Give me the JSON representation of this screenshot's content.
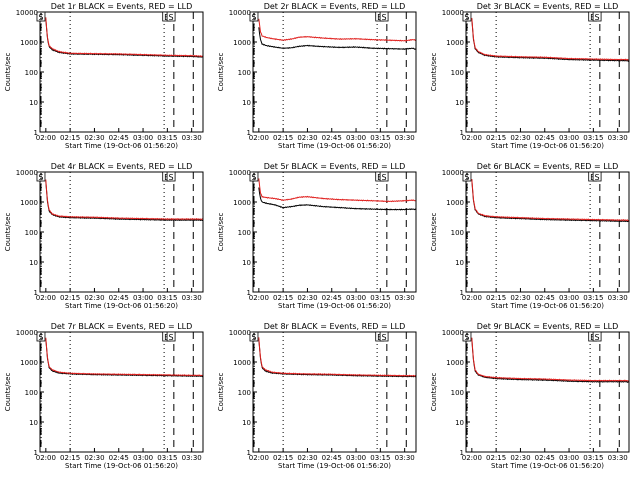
{
  "colors": {
    "events": "#000000",
    "lld": "#e0201e",
    "axis": "#000000"
  },
  "chart_data": [
    {
      "type": "line",
      "title": "Det 1r BLACK = Events, RED = LLD",
      "xlabel": "Start Time (19-Oct-06 01:56:20)",
      "ylabel": "Counts/sec",
      "xticks": [
        "02:00",
        "02:15",
        "02:30",
        "02:45",
        "03:00",
        "03:15",
        "03:30"
      ],
      "yticks": [
        "1",
        "10",
        "100",
        "1000",
        "10000"
      ],
      "ylim": [
        1,
        10000
      ],
      "yscale": "log",
      "markers": [
        "S",
        "E",
        "S"
      ],
      "series": [
        {
          "key": "events",
          "x": [
            0,
            1,
            2,
            4,
            8,
            15,
            30,
            45,
            60,
            75,
            90,
            95,
            98,
            99,
            100,
            102
          ],
          "values": [
            6000,
            1300,
            700,
            550,
            450,
            400,
            390,
            380,
            360,
            340,
            330,
            320,
            310,
            260,
            800,
            10000
          ]
        },
        {
          "key": "lld",
          "x": [
            0,
            1,
            2,
            4,
            8,
            15,
            30,
            45,
            60,
            75,
            90,
            95,
            98,
            99,
            100,
            102
          ],
          "values": [
            6500,
            1400,
            750,
            600,
            480,
            420,
            410,
            400,
            380,
            360,
            350,
            340,
            330,
            300,
            900,
            10000
          ]
        }
      ]
    },
    {
      "type": "line",
      "title": "Det 2r BLACK = Events, RED = LLD",
      "xlabel": "Start Time (19-Oct-06 01:56:20)",
      "ylabel": "Counts/sec",
      "xticks": [
        "02:00",
        "02:15",
        "02:30",
        "02:45",
        "03:00",
        "03:15",
        "03:30"
      ],
      "yticks": [
        "1",
        "10",
        "100",
        "1000",
        "10000"
      ],
      "ylim": [
        1,
        10000
      ],
      "yscale": "log",
      "markers": [
        "S",
        "E",
        "S"
      ],
      "series": [
        {
          "key": "events",
          "x": [
            0,
            1,
            2,
            5,
            10,
            15,
            20,
            25,
            30,
            40,
            50,
            60,
            70,
            80,
            90,
            95,
            97,
            98,
            100,
            102
          ],
          "values": [
            3000,
            1200,
            850,
            750,
            680,
            620,
            640,
            720,
            760,
            700,
            660,
            680,
            620,
            600,
            580,
            620,
            560,
            200,
            1100,
            10000
          ]
        },
        {
          "key": "lld",
          "x": [
            0,
            1,
            2,
            5,
            10,
            15,
            20,
            25,
            30,
            40,
            50,
            60,
            70,
            80,
            90,
            95,
            97,
            98,
            100,
            102
          ],
          "values": [
            6000,
            2200,
            1600,
            1400,
            1250,
            1150,
            1250,
            1450,
            1500,
            1350,
            1250,
            1280,
            1200,
            1150,
            1100,
            1200,
            1150,
            700,
            1500,
            10000
          ]
        }
      ]
    },
    {
      "type": "line",
      "title": "Det 3r BLACK = Events, RED = LLD",
      "xlabel": "Start Time (19-Oct-06 01:56:20)",
      "ylabel": "Counts/sec",
      "xticks": [
        "02:00",
        "02:15",
        "02:30",
        "02:45",
        "03:00",
        "03:15",
        "03:30"
      ],
      "yticks": [
        "1",
        "10",
        "100",
        "1000",
        "10000"
      ],
      "ylim": [
        1,
        10000
      ],
      "yscale": "log",
      "markers": [
        "S",
        "E",
        "S"
      ],
      "series": [
        {
          "key": "events",
          "x": [
            0,
            1,
            2,
            4,
            8,
            15,
            30,
            45,
            60,
            75,
            90,
            95,
            98,
            99,
            100,
            102
          ],
          "values": [
            6000,
            1200,
            600,
            450,
            360,
            320,
            300,
            290,
            260,
            250,
            240,
            240,
            230,
            180,
            700,
            10000
          ]
        },
        {
          "key": "lld",
          "x": [
            0,
            1,
            2,
            4,
            8,
            15,
            30,
            45,
            60,
            75,
            90,
            95,
            98,
            99,
            100,
            102
          ],
          "values": [
            6500,
            1300,
            650,
            480,
            380,
            340,
            320,
            310,
            280,
            270,
            260,
            260,
            250,
            220,
            800,
            10000
          ]
        }
      ]
    },
    {
      "type": "line",
      "title": "Det 4r BLACK = Events, RED = LLD",
      "xlabel": "Start Time (19-Oct-06 01:56:20)",
      "ylabel": "Counts/sec",
      "xticks": [
        "02:00",
        "02:15",
        "02:30",
        "02:45",
        "03:00",
        "03:15",
        "03:30"
      ],
      "yticks": [
        "1",
        "10",
        "100",
        "1000",
        "10000"
      ],
      "ylim": [
        1,
        10000
      ],
      "yscale": "log",
      "markers": [
        "S",
        "E",
        "S"
      ],
      "series": [
        {
          "key": "events",
          "x": [
            0,
            1,
            2,
            4,
            8,
            15,
            30,
            45,
            60,
            75,
            90,
            95,
            98,
            99,
            100,
            102
          ],
          "values": [
            5000,
            1000,
            500,
            380,
            320,
            300,
            290,
            270,
            260,
            250,
            250,
            250,
            240,
            100,
            700,
            10000
          ]
        },
        {
          "key": "lld",
          "x": [
            0,
            1,
            2,
            4,
            8,
            15,
            30,
            45,
            60,
            75,
            90,
            95,
            98,
            99,
            100,
            102
          ],
          "values": [
            5500,
            1100,
            550,
            400,
            340,
            320,
            310,
            290,
            280,
            270,
            270,
            270,
            260,
            200,
            800,
            10000
          ]
        }
      ]
    },
    {
      "type": "line",
      "title": "Det 5r BLACK = Events, RED = LLD",
      "xlabel": "Start Time (19-Oct-06 01:56:20)",
      "ylabel": "Counts/sec",
      "xticks": [
        "02:00",
        "02:15",
        "02:30",
        "02:45",
        "03:00",
        "03:15",
        "03:30"
      ],
      "yticks": [
        "1",
        "10",
        "100",
        "1000",
        "10000"
      ],
      "ylim": [
        1,
        10000
      ],
      "yscale": "log",
      "markers": [
        "S",
        "E",
        "S"
      ],
      "series": [
        {
          "key": "events",
          "x": [
            0,
            1,
            2,
            5,
            10,
            15,
            20,
            25,
            30,
            40,
            50,
            60,
            70,
            80,
            90,
            95,
            97,
            98,
            100,
            102
          ],
          "values": [
            3000,
            1300,
            1000,
            900,
            800,
            650,
            700,
            780,
            800,
            700,
            650,
            600,
            580,
            560,
            560,
            580,
            560,
            100,
            1000,
            10000
          ]
        },
        {
          "key": "lld",
          "x": [
            0,
            1,
            2,
            5,
            10,
            15,
            20,
            25,
            30,
            40,
            50,
            60,
            70,
            80,
            90,
            95,
            97,
            98,
            100,
            102
          ],
          "values": [
            6000,
            2000,
            1500,
            1400,
            1300,
            1150,
            1250,
            1450,
            1500,
            1300,
            1200,
            1150,
            1100,
            1050,
            1100,
            1150,
            1100,
            500,
            1500,
            10000
          ]
        }
      ]
    },
    {
      "type": "line",
      "title": "Det 6r BLACK = Events, RED = LLD",
      "xlabel": "Start Time (19-Oct-06 01:56:20)",
      "ylabel": "Counts/sec",
      "xticks": [
        "02:00",
        "02:15",
        "02:30",
        "02:45",
        "03:00",
        "03:15",
        "03:30"
      ],
      "yticks": [
        "1",
        "10",
        "100",
        "1000",
        "10000"
      ],
      "ylim": [
        1,
        10000
      ],
      "yscale": "log",
      "markers": [
        "S",
        "E",
        "S"
      ],
      "series": [
        {
          "key": "events",
          "x": [
            0,
            1,
            2,
            4,
            8,
            15,
            30,
            45,
            60,
            75,
            90,
            95,
            98,
            99,
            100,
            102
          ],
          "values": [
            5500,
            1100,
            560,
            400,
            330,
            300,
            280,
            260,
            250,
            240,
            230,
            230,
            220,
            100,
            700,
            10000
          ]
        },
        {
          "key": "lld",
          "x": [
            0,
            1,
            2,
            4,
            8,
            15,
            30,
            45,
            60,
            75,
            90,
            95,
            98,
            99,
            100,
            102
          ],
          "values": [
            6000,
            1200,
            600,
            420,
            350,
            320,
            300,
            280,
            270,
            260,
            250,
            250,
            240,
            200,
            800,
            10000
          ]
        }
      ]
    },
    {
      "type": "line",
      "title": "Det 7r BLACK = Events, RED = LLD",
      "xlabel": "Start Time (19-Oct-06 01:56:20)",
      "ylabel": "Counts/sec",
      "xticks": [
        "02:00",
        "02:15",
        "02:30",
        "02:45",
        "03:00",
        "03:15",
        "03:30"
      ],
      "yticks": [
        "1",
        "10",
        "100",
        "1000",
        "10000"
      ],
      "ylim": [
        1,
        10000
      ],
      "yscale": "log",
      "markers": [
        "S",
        "E",
        "S"
      ],
      "series": [
        {
          "key": "events",
          "x": [
            0,
            1,
            2,
            4,
            8,
            15,
            30,
            45,
            60,
            75,
            90,
            95,
            98,
            99,
            100,
            102
          ],
          "values": [
            6000,
            1300,
            650,
            500,
            430,
            400,
            380,
            370,
            360,
            350,
            340,
            340,
            330,
            280,
            800,
            10000
          ]
        },
        {
          "key": "lld",
          "x": [
            0,
            1,
            2,
            4,
            8,
            15,
            30,
            45,
            60,
            75,
            90,
            95,
            98,
            99,
            100,
            102
          ],
          "values": [
            6500,
            1400,
            700,
            550,
            460,
            420,
            400,
            390,
            380,
            370,
            360,
            360,
            350,
            320,
            900,
            10000
          ]
        }
      ]
    },
    {
      "type": "line",
      "title": "Det 8r BLACK = Events, RED = LLD",
      "xlabel": "Start Time (19-Oct-06 01:56:20)",
      "ylabel": "Counts/sec",
      "xticks": [
        "02:00",
        "02:15",
        "02:30",
        "02:45",
        "03:00",
        "03:15",
        "03:30"
      ],
      "yticks": [
        "1",
        "10",
        "100",
        "1000",
        "10000"
      ],
      "ylim": [
        1,
        10000
      ],
      "yscale": "log",
      "markers": [
        "S",
        "E",
        "S"
      ],
      "series": [
        {
          "key": "events",
          "x": [
            0,
            1,
            2,
            4,
            8,
            15,
            30,
            45,
            60,
            75,
            90,
            95,
            98,
            99,
            100,
            102
          ],
          "values": [
            6000,
            1300,
            650,
            500,
            430,
            400,
            380,
            370,
            350,
            340,
            330,
            330,
            320,
            150,
            800,
            10000
          ]
        },
        {
          "key": "lld",
          "x": [
            0,
            1,
            2,
            4,
            8,
            15,
            30,
            45,
            60,
            75,
            90,
            95,
            98,
            99,
            100,
            102
          ],
          "values": [
            6500,
            1400,
            700,
            550,
            460,
            420,
            400,
            390,
            370,
            360,
            350,
            350,
            340,
            250,
            900,
            10000
          ]
        }
      ]
    },
    {
      "type": "line",
      "title": "Det 9r BLACK = Events, RED = LLD",
      "xlabel": "Start Time (19-Oct-06 01:56:20)",
      "ylabel": "Counts/sec",
      "xticks": [
        "02:00",
        "02:15",
        "02:30",
        "02:45",
        "03:00",
        "03:15",
        "03:30"
      ],
      "yticks": [
        "1",
        "10",
        "100",
        "1000",
        "10000"
      ],
      "ylim": [
        1,
        10000
      ],
      "yscale": "log",
      "markers": [
        "S",
        "E",
        "S"
      ],
      "series": [
        {
          "key": "events",
          "x": [
            0,
            1,
            2,
            4,
            8,
            15,
            30,
            45,
            60,
            75,
            90,
            95,
            98,
            99,
            100,
            102
          ],
          "values": [
            6000,
            1100,
            500,
            370,
            310,
            280,
            260,
            250,
            230,
            220,
            220,
            220,
            210,
            170,
            700,
            10000
          ]
        },
        {
          "key": "lld",
          "x": [
            0,
            1,
            2,
            4,
            8,
            15,
            30,
            45,
            60,
            75,
            90,
            95,
            98,
            99,
            100,
            102
          ],
          "values": [
            6500,
            1200,
            550,
            390,
            330,
            300,
            280,
            270,
            250,
            240,
            240,
            240,
            230,
            200,
            800,
            10000
          ]
        }
      ]
    }
  ]
}
